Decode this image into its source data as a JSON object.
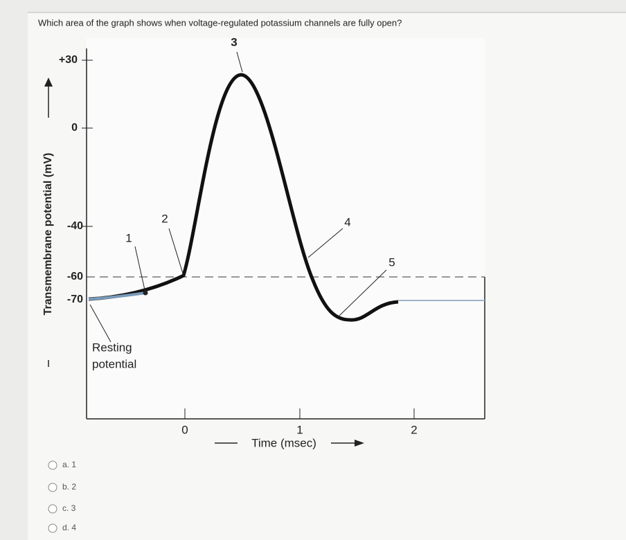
{
  "question": {
    "text": "Which area of the graph shows when voltage-regulated potassium channels are fully open?"
  },
  "figure": {
    "y_axis_label": "Transmembrane potential (mV)",
    "y_tick_labels": [
      "+30",
      "0",
      "-40",
      "-60",
      "-70"
    ],
    "x_axis_label": "Time (msec)",
    "x_tick_labels": [
      "0",
      "1",
      "2"
    ],
    "markers": [
      "1",
      "2",
      "3",
      "4",
      "5"
    ],
    "resting_label": [
      "Resting",
      "potential"
    ]
  },
  "options": [
    "a. 1",
    "b. 2",
    "c. 3",
    "d. 4"
  ]
}
